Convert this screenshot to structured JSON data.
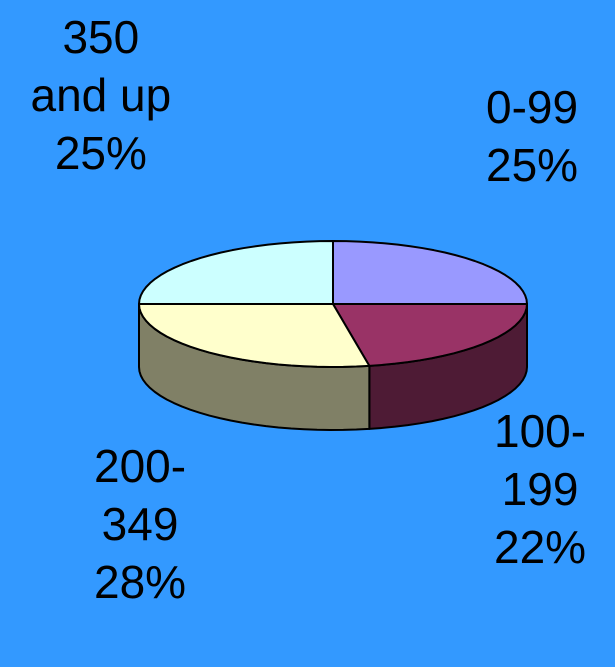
{
  "background_color": "#3399FF",
  "chart_data": {
    "type": "pie",
    "style": "3d",
    "title": "",
    "legend": "none",
    "slices": [
      {
        "category": "0-99",
        "value": 25,
        "label_lines": [
          "0-99",
          "25%"
        ],
        "top_color": "#9999FF",
        "side_color": "#5A5AA8"
      },
      {
        "category": "100-199",
        "value": 22,
        "label_lines": [
          "100-",
          "199",
          "22%"
        ],
        "top_color": "#993366",
        "side_color": "#4E1B35"
      },
      {
        "category": "200-349",
        "value": 28,
        "label_lines": [
          "200-",
          "349",
          "28%"
        ],
        "top_color": "#FFFFCC",
        "side_color": "#808066"
      },
      {
        "category": "350 and up",
        "value": 25,
        "label_lines": [
          "350",
          "and up",
          "25%"
        ],
        "top_color": "#CCFFFF",
        "side_color": "#669999"
      }
    ]
  }
}
